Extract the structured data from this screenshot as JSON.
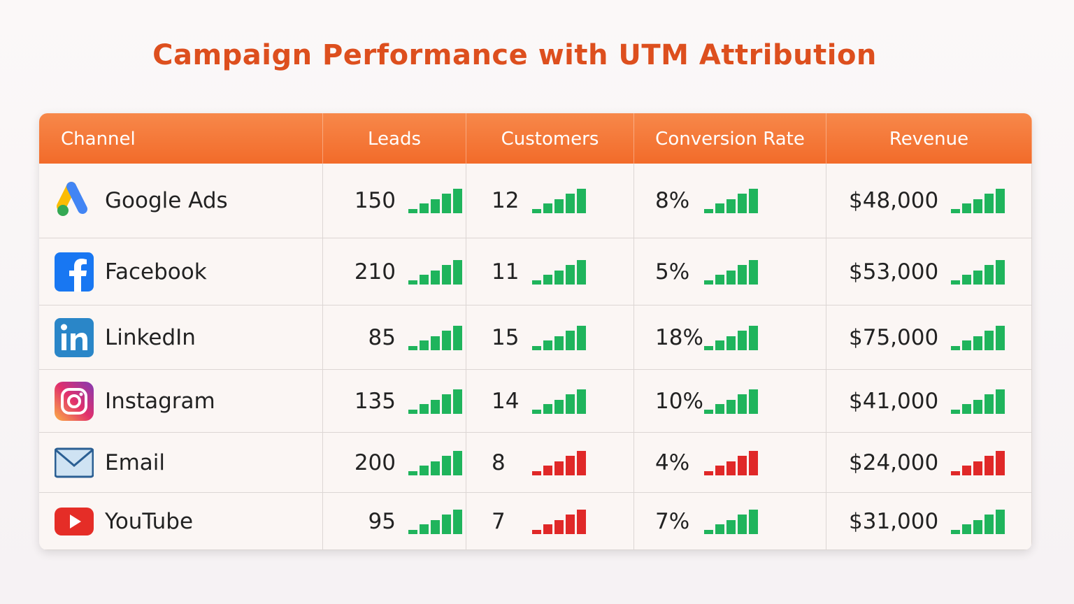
{
  "title": "Campaign Performance with UTM Attribution",
  "table": {
    "header": [
      "Channel",
      "Leads",
      "Customers",
      "Conversion Rate",
      "Revenue"
    ],
    "rows": [
      {
        "cells": [
          "Google Ads",
          "150",
          "12",
          "8%",
          "$48,000"
        ],
        "bar_colors": [
          "#1fb45c",
          "#1fb45c",
          "#1fb45c",
          "#1fb45c"
        ]
      },
      {
        "cells": [
          "Facebook",
          "210",
          "11",
          "5%",
          "$53,000"
        ],
        "bar_colors": [
          "#1fb45c",
          "#1fb45c",
          "#1fb45c",
          "#1fb45c"
        ]
      },
      {
        "cells": [
          "LinkedIn",
          "85",
          "15",
          "18%",
          "$75,000"
        ],
        "bar_colors": [
          "#1fb45c",
          "#1fb45c",
          "#1fb45c",
          "#1fb45c"
        ]
      },
      {
        "cells": [
          "Instagram",
          "135",
          "14",
          "10%",
          "$41,000"
        ],
        "bar_colors": [
          "#1fb45c",
          "#1fb45c",
          "#1fb45c",
          "#1fb45c"
        ]
      },
      {
        "cells": [
          "Email",
          "200",
          "8",
          "4%",
          "$24,000"
        ],
        "bar_colors": [
          "#1fb45c",
          "#e02828",
          "#e02828",
          "#e02828"
        ]
      },
      {
        "cells": [
          "YouTube",
          "95",
          "7",
          "7%",
          "$31,000"
        ],
        "bar_colors": [
          "#1fb45c",
          "#e02828",
          "#1fb45c",
          "#1fb45c"
        ]
      }
    ]
  }
}
